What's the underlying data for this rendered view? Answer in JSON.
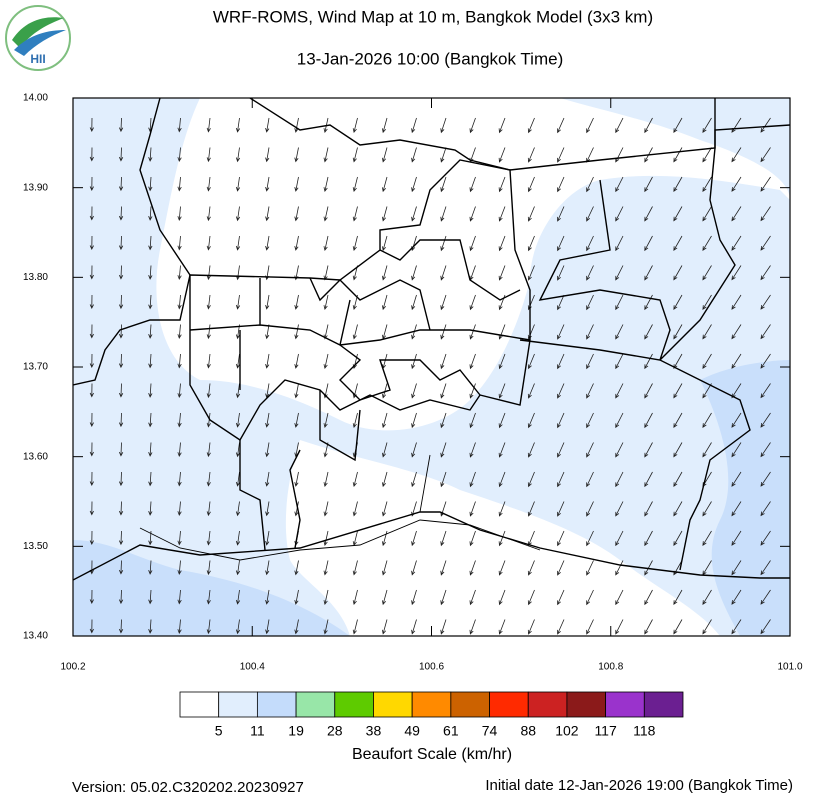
{
  "logo": "HII",
  "title": "WRF-ROMS, Wind Map at 10 m, Bangkok Model (3x3 km)",
  "subtitle": "13-Jan-2026 10:00 (Bangkok Time)",
  "map": {
    "xlim": [
      100.2,
      101.0
    ],
    "ylim": [
      13.4,
      14.0
    ],
    "xticks": [
      100.2,
      100.4,
      100.6,
      100.8,
      {
        "value": 101.0,
        "label": "101.0"
      }
    ],
    "yticks": [
      {
        "value": 13.4,
        "label": "13.40"
      },
      {
        "value": 13.5,
        "label": "13.50"
      },
      {
        "value": 13.6,
        "label": "13.60"
      },
      {
        "value": 13.7,
        "label": "13.70"
      },
      {
        "value": 13.8,
        "label": "13.80"
      },
      {
        "value": 13.9,
        "label": "13.90"
      },
      {
        "value": 14.0,
        "label": "14.00"
      }
    ]
  },
  "colorbar": {
    "title": "Beaufort Scale (km/hr)",
    "colors": [
      "#ffffff",
      "#e1eefd",
      "#c4dcfb",
      "#98e6a8",
      "#5ecb00",
      "#ffd800",
      "#ff8a00",
      "#cc6200",
      "#ff2a00",
      "#cc2222",
      "#8b1a1a",
      "#9a33cc",
      "#6b1f91"
    ],
    "labels": [
      5,
      11,
      19,
      28,
      38,
      49,
      61,
      74,
      88,
      102,
      117,
      118
    ]
  },
  "footer": {
    "version": "Version: 05.02.C320202.20230927",
    "initial": "Initial date 12-Jan-2026 19:00 (Bangkok Time)"
  }
}
